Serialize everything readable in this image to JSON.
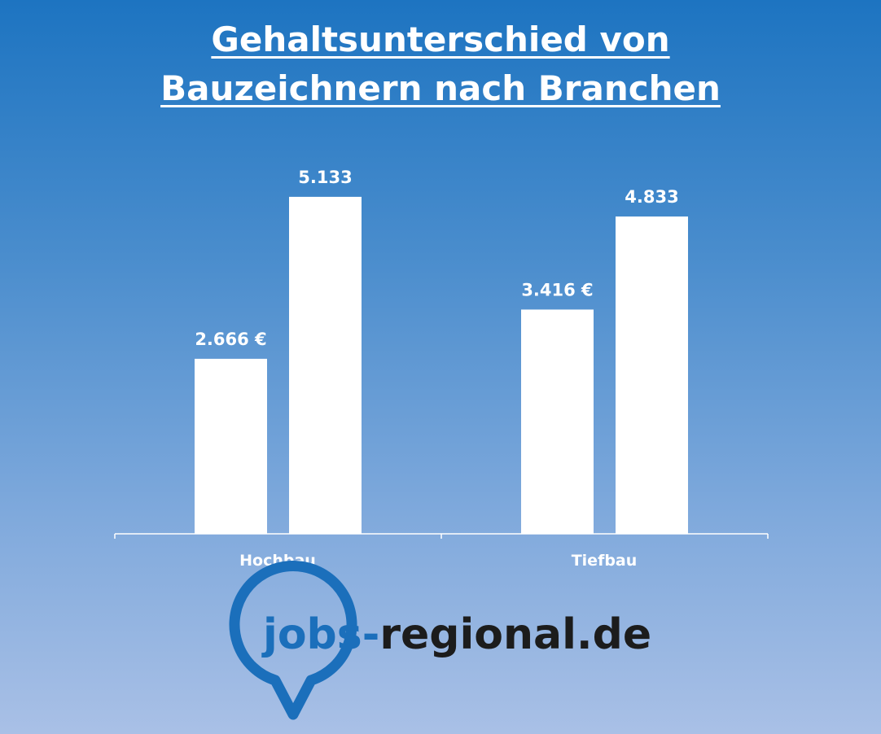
{
  "title_lines": [
    "Gehaltsunterschied von",
    "Bauzeichnern nach Branchen"
  ],
  "chart_data": {
    "type": "bar",
    "title": "Gehaltsunterschied von Bauzeichnern nach Branchen",
    "categories": [
      "Hochbau",
      "Tiefbau"
    ],
    "series": [
      {
        "values": [
          2666,
          3416
        ],
        "labels": [
          "2.666 €",
          "3.416 €"
        ]
      },
      {
        "values": [
          5133,
          4833
        ],
        "labels": [
          "5.133",
          "4.833"
        ]
      }
    ],
    "xlabel": "",
    "ylabel": "",
    "ylim": [
      0,
      5900
    ],
    "grid": false,
    "legend": "none",
    "colors": {
      "bar": "#ffffff",
      "axis": "#ffffff"
    }
  },
  "logo": {
    "part_a": "jobs-",
    "part_b": "regional.de",
    "colors": {
      "accent": "#1b6fbb",
      "dark": "#1c1c1c"
    }
  }
}
